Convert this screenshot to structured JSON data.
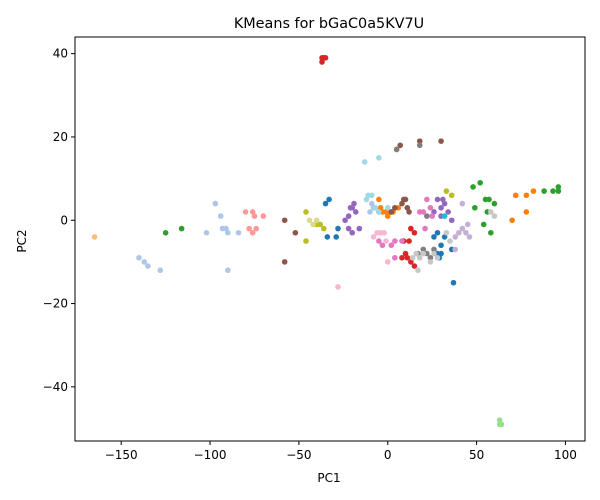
{
  "chart_data": {
    "type": "scatter",
    "title": "KMeans for bGaC0a5KV7U",
    "xlabel": "PC1",
    "ylabel": "PC2",
    "xlim": [
      -176,
      111
    ],
    "ylim": [
      -53,
      44
    ],
    "xticks": [
      -150,
      -100,
      -50,
      0,
      50,
      100
    ],
    "yticks": [
      -40,
      -20,
      0,
      20,
      40
    ],
    "grid": false,
    "legend": "none",
    "series": [
      {
        "color": "#1f77b4",
        "points": [
          [
            -35,
            4
          ],
          [
            -33,
            5
          ],
          [
            -34,
            -4
          ],
          [
            -29,
            -4
          ],
          [
            -28,
            -2
          ],
          [
            26,
            -4
          ],
          [
            28,
            -3
          ],
          [
            30,
            -6
          ],
          [
            30,
            -8
          ],
          [
            32,
            -4
          ],
          [
            28,
            -8
          ],
          [
            36,
            -7
          ],
          [
            37,
            -15
          ],
          [
            29,
            -9
          ]
        ]
      },
      {
        "color": "#aec7e8",
        "points": [
          [
            -140,
            -9
          ],
          [
            -137,
            -10
          ],
          [
            -135,
            -11
          ],
          [
            -128,
            -12
          ],
          [
            -102,
            -3
          ],
          [
            -97,
            4
          ],
          [
            -94,
            1
          ],
          [
            -93,
            -2
          ],
          [
            -91,
            -2
          ],
          [
            -90,
            -3
          ],
          [
            -84,
            -3
          ],
          [
            -90,
            -12
          ],
          [
            -10,
            2
          ],
          [
            -8,
            3
          ],
          [
            -9,
            4
          ]
        ]
      },
      {
        "color": "#ff7f0e",
        "points": [
          [
            -5,
            5
          ],
          [
            -4,
            3
          ],
          [
            -5,
            2
          ],
          [
            -3,
            2
          ],
          [
            -1,
            2
          ],
          [
            1,
            2
          ],
          [
            2,
            2
          ],
          [
            0,
            1
          ],
          [
            3,
            2
          ],
          [
            6,
            3
          ],
          [
            72,
            6
          ],
          [
            82,
            7
          ],
          [
            78,
            6
          ],
          [
            70,
            0
          ],
          [
            78,
            2
          ]
        ]
      },
      {
        "color": "#ffbb78",
        "points": [
          [
            -165,
            -4
          ]
        ]
      },
      {
        "color": "#2ca02c",
        "points": [
          [
            -125,
            -3
          ],
          [
            -116,
            -2
          ],
          [
            48,
            8
          ],
          [
            52,
            9
          ],
          [
            55,
            5
          ],
          [
            57,
            5
          ],
          [
            60,
            4
          ],
          [
            56,
            2
          ],
          [
            54,
            -1
          ],
          [
            58,
            -3
          ],
          [
            49,
            3
          ],
          [
            88,
            7
          ],
          [
            93,
            7
          ],
          [
            96,
            8
          ],
          [
            96,
            7
          ]
        ]
      },
      {
        "color": "#98df8a",
        "points": [
          [
            63,
            -48
          ],
          [
            63,
            -49
          ],
          [
            64,
            -49
          ]
        ]
      },
      {
        "color": "#d62728",
        "points": [
          [
            -37,
            39
          ],
          [
            -36,
            39
          ],
          [
            -35,
            39
          ],
          [
            -37,
            38
          ],
          [
            8,
            -9
          ],
          [
            10,
            -8
          ],
          [
            11,
            -9
          ],
          [
            13,
            -2
          ],
          [
            15,
            -3
          ],
          [
            13,
            -10
          ],
          [
            15,
            -11
          ],
          [
            9,
            -5
          ],
          [
            12,
            -5
          ]
        ]
      },
      {
        "color": "#ff9896",
        "points": [
          [
            -80,
            2
          ],
          [
            -76,
            2
          ],
          [
            -75,
            1
          ],
          [
            -78,
            -2
          ],
          [
            -76,
            -3
          ],
          [
            -74,
            -2
          ],
          [
            -70,
            1
          ]
        ]
      },
      {
        "color": "#9467bd",
        "points": [
          [
            -24,
            0
          ],
          [
            -22,
            1
          ],
          [
            -20,
            3
          ],
          [
            -18,
            2
          ],
          [
            -19,
            4
          ],
          [
            -21,
            3
          ],
          [
            -22,
            -2
          ],
          [
            -20,
            -3
          ],
          [
            -16,
            -2
          ],
          [
            26,
            2
          ],
          [
            28,
            5
          ],
          [
            30,
            3
          ],
          [
            31,
            5
          ],
          [
            32,
            4
          ],
          [
            34,
            2
          ],
          [
            36,
            0
          ],
          [
            30,
            1
          ]
        ]
      },
      {
        "color": "#c5b0d5",
        "points": [
          [
            38,
            -4
          ],
          [
            40,
            -3
          ],
          [
            42,
            -2
          ],
          [
            44,
            -3
          ],
          [
            46,
            -4
          ],
          [
            42,
            4
          ],
          [
            45,
            -1
          ],
          [
            38,
            -7
          ]
        ]
      },
      {
        "color": "#8c564b",
        "points": [
          [
            -58,
            0
          ],
          [
            -52,
            -3
          ],
          [
            -58,
            -10
          ],
          [
            5,
            17
          ],
          [
            7,
            18
          ],
          [
            18,
            19
          ],
          [
            30,
            19
          ],
          [
            2,
            2
          ],
          [
            4,
            3
          ],
          [
            8,
            4
          ],
          [
            9,
            5
          ],
          [
            10,
            5
          ],
          [
            11,
            3
          ],
          [
            12,
            2
          ]
        ]
      },
      {
        "color": "#e377c2",
        "points": [
          [
            -5,
            -5
          ],
          [
            -3,
            -6
          ],
          [
            2,
            -6
          ],
          [
            4,
            -5
          ],
          [
            8,
            -5
          ],
          [
            4,
            -9
          ],
          [
            18,
            2
          ],
          [
            20,
            2
          ],
          [
            22,
            5
          ],
          [
            24,
            3
          ],
          [
            25,
            1
          ],
          [
            21,
            -2
          ]
        ]
      },
      {
        "color": "#f7b6d2",
        "points": [
          [
            -28,
            -16
          ],
          [
            -8,
            -4
          ],
          [
            -6,
            -3
          ],
          [
            -4,
            -3
          ],
          [
            -2,
            -3
          ],
          [
            -1,
            -5
          ],
          [
            0,
            -10
          ]
        ]
      },
      {
        "color": "#7f7f7f",
        "points": [
          [
            18,
            18
          ],
          [
            5,
            17
          ],
          [
            17,
            -8
          ],
          [
            20,
            -7
          ],
          [
            22,
            -8
          ],
          [
            24,
            -9
          ],
          [
            26,
            -7
          ],
          [
            22,
            1
          ]
        ]
      },
      {
        "color": "#c7c7c7",
        "points": [
          [
            14,
            -9
          ],
          [
            16,
            -8
          ],
          [
            18,
            -9
          ],
          [
            20,
            -8
          ],
          [
            24,
            -10
          ],
          [
            26,
            -8
          ],
          [
            28,
            -9
          ],
          [
            17,
            -12
          ],
          [
            33,
            -3
          ],
          [
            35,
            -5
          ],
          [
            58,
            2
          ],
          [
            60,
            1
          ]
        ]
      },
      {
        "color": "#bcbd22",
        "points": [
          [
            -46,
            2
          ],
          [
            -40,
            -1
          ],
          [
            -38,
            -1
          ],
          [
            -36,
            -2
          ],
          [
            -46,
            -5
          ],
          [
            33,
            7
          ],
          [
            36,
            6
          ]
        ]
      },
      {
        "color": "#dbdb8d",
        "points": [
          [
            -44,
            0
          ],
          [
            -42,
            -1
          ],
          [
            -40,
            0
          ]
        ]
      },
      {
        "color": "#17becf",
        "points": [
          [
            32,
            1
          ]
        ]
      },
      {
        "color": "#9edae5",
        "points": [
          [
            -13,
            14
          ],
          [
            -5,
            15
          ],
          [
            -11,
            6
          ],
          [
            -9,
            6
          ],
          [
            -12,
            5
          ],
          [
            -7,
            3
          ],
          [
            -5,
            2
          ],
          [
            0,
            3
          ]
        ]
      }
    ]
  }
}
